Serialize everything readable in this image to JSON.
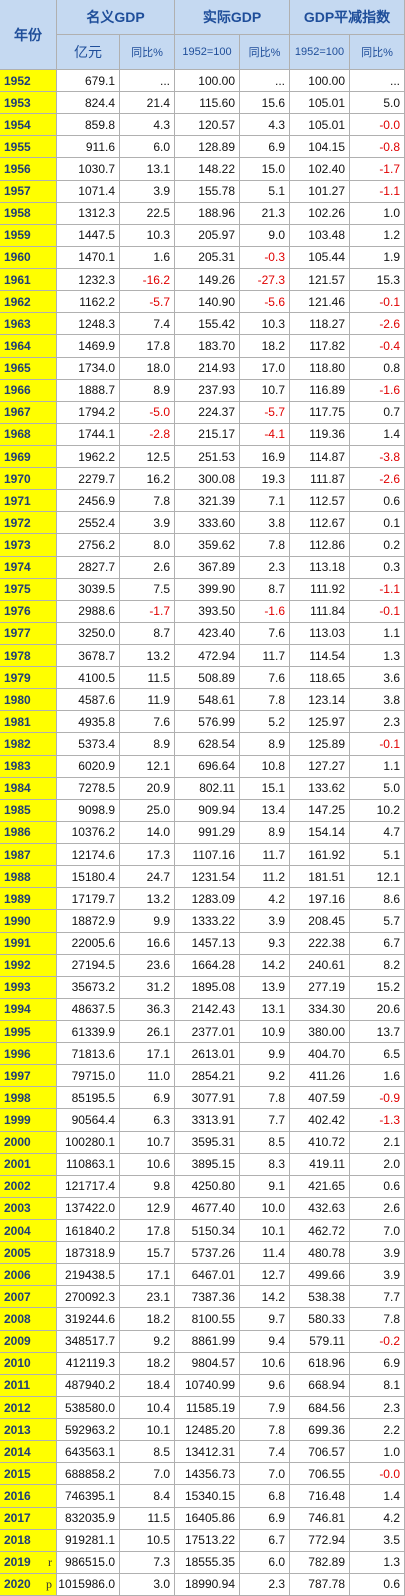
{
  "header": {
    "year": "年份",
    "groups": [
      "名义GDP",
      "实际GDP",
      "GDP平减指数"
    ],
    "subheaders": [
      "亿元",
      "同比%",
      "1952=100",
      "同比%",
      "1952=100",
      "同比%"
    ]
  },
  "rows": [
    {
      "year": "1952",
      "cells": [
        "679.1",
        "...",
        "100.00",
        "...",
        "100.00",
        "..."
      ]
    },
    {
      "year": "1953",
      "cells": [
        "824.4",
        "21.4",
        "115.60",
        "15.6",
        "105.01",
        "5.0"
      ]
    },
    {
      "year": "1954",
      "cells": [
        "859.8",
        "4.3",
        "120.57",
        "4.3",
        "105.01",
        "-0.0"
      ]
    },
    {
      "year": "1955",
      "cells": [
        "911.6",
        "6.0",
        "128.89",
        "6.9",
        "104.15",
        "-0.8"
      ]
    },
    {
      "year": "1956",
      "cells": [
        "1030.7",
        "13.1",
        "148.22",
        "15.0",
        "102.40",
        "-1.7"
      ]
    },
    {
      "year": "1957",
      "cells": [
        "1071.4",
        "3.9",
        "155.78",
        "5.1",
        "101.27",
        "-1.1"
      ]
    },
    {
      "year": "1958",
      "cells": [
        "1312.3",
        "22.5",
        "188.96",
        "21.3",
        "102.26",
        "1.0"
      ]
    },
    {
      "year": "1959",
      "cells": [
        "1447.5",
        "10.3",
        "205.97",
        "9.0",
        "103.48",
        "1.2"
      ]
    },
    {
      "year": "1960",
      "cells": [
        "1470.1",
        "1.6",
        "205.31",
        "-0.3",
        "105.44",
        "1.9"
      ]
    },
    {
      "year": "1961",
      "cells": [
        "1232.3",
        "-16.2",
        "149.26",
        "-27.3",
        "121.57",
        "15.3"
      ]
    },
    {
      "year": "1962",
      "cells": [
        "1162.2",
        "-5.7",
        "140.90",
        "-5.6",
        "121.46",
        "-0.1"
      ]
    },
    {
      "year": "1963",
      "cells": [
        "1248.3",
        "7.4",
        "155.42",
        "10.3",
        "118.27",
        "-2.6"
      ]
    },
    {
      "year": "1964",
      "cells": [
        "1469.9",
        "17.8",
        "183.70",
        "18.2",
        "117.82",
        "-0.4"
      ]
    },
    {
      "year": "1965",
      "cells": [
        "1734.0",
        "18.0",
        "214.93",
        "17.0",
        "118.80",
        "0.8"
      ]
    },
    {
      "year": "1966",
      "cells": [
        "1888.7",
        "8.9",
        "237.93",
        "10.7",
        "116.89",
        "-1.6"
      ]
    },
    {
      "year": "1967",
      "cells": [
        "1794.2",
        "-5.0",
        "224.37",
        "-5.7",
        "117.75",
        "0.7"
      ]
    },
    {
      "year": "1968",
      "cells": [
        "1744.1",
        "-2.8",
        "215.17",
        "-4.1",
        "119.36",
        "1.4"
      ]
    },
    {
      "year": "1969",
      "cells": [
        "1962.2",
        "12.5",
        "251.53",
        "16.9",
        "114.87",
        "-3.8"
      ]
    },
    {
      "year": "1970",
      "cells": [
        "2279.7",
        "16.2",
        "300.08",
        "19.3",
        "111.87",
        "-2.6"
      ]
    },
    {
      "year": "1971",
      "cells": [
        "2456.9",
        "7.8",
        "321.39",
        "7.1",
        "112.57",
        "0.6"
      ]
    },
    {
      "year": "1972",
      "cells": [
        "2552.4",
        "3.9",
        "333.60",
        "3.8",
        "112.67",
        "0.1"
      ]
    },
    {
      "year": "1973",
      "cells": [
        "2756.2",
        "8.0",
        "359.62",
        "7.8",
        "112.86",
        "0.2"
      ]
    },
    {
      "year": "1974",
      "cells": [
        "2827.7",
        "2.6",
        "367.89",
        "2.3",
        "113.18",
        "0.3"
      ]
    },
    {
      "year": "1975",
      "cells": [
        "3039.5",
        "7.5",
        "399.90",
        "8.7",
        "111.92",
        "-1.1"
      ]
    },
    {
      "year": "1976",
      "cells": [
        "2988.6",
        "-1.7",
        "393.50",
        "-1.6",
        "111.84",
        "-0.1"
      ]
    },
    {
      "year": "1977",
      "cells": [
        "3250.0",
        "8.7",
        "423.40",
        "7.6",
        "113.03",
        "1.1"
      ]
    },
    {
      "year": "1978",
      "cells": [
        "3678.7",
        "13.2",
        "472.94",
        "11.7",
        "114.54",
        "1.3"
      ]
    },
    {
      "year": "1979",
      "cells": [
        "4100.5",
        "11.5",
        "508.89",
        "7.6",
        "118.65",
        "3.6"
      ]
    },
    {
      "year": "1980",
      "cells": [
        "4587.6",
        "11.9",
        "548.61",
        "7.8",
        "123.14",
        "3.8"
      ]
    },
    {
      "year": "1981",
      "cells": [
        "4935.8",
        "7.6",
        "576.99",
        "5.2",
        "125.97",
        "2.3"
      ]
    },
    {
      "year": "1982",
      "cells": [
        "5373.4",
        "8.9",
        "628.54",
        "8.9",
        "125.89",
        "-0.1"
      ]
    },
    {
      "year": "1983",
      "cells": [
        "6020.9",
        "12.1",
        "696.64",
        "10.8",
        "127.27",
        "1.1"
      ]
    },
    {
      "year": "1984",
      "cells": [
        "7278.5",
        "20.9",
        "802.11",
        "15.1",
        "133.62",
        "5.0"
      ]
    },
    {
      "year": "1985",
      "cells": [
        "9098.9",
        "25.0",
        "909.94",
        "13.4",
        "147.25",
        "10.2"
      ]
    },
    {
      "year": "1986",
      "cells": [
        "10376.2",
        "14.0",
        "991.29",
        "8.9",
        "154.14",
        "4.7"
      ]
    },
    {
      "year": "1987",
      "cells": [
        "12174.6",
        "17.3",
        "1107.16",
        "11.7",
        "161.92",
        "5.1"
      ]
    },
    {
      "year": "1988",
      "cells": [
        "15180.4",
        "24.7",
        "1231.54",
        "11.2",
        "181.51",
        "12.1"
      ]
    },
    {
      "year": "1989",
      "cells": [
        "17179.7",
        "13.2",
        "1283.09",
        "4.2",
        "197.16",
        "8.6"
      ]
    },
    {
      "year": "1990",
      "cells": [
        "18872.9",
        "9.9",
        "1333.22",
        "3.9",
        "208.45",
        "5.7"
      ]
    },
    {
      "year": "1991",
      "cells": [
        "22005.6",
        "16.6",
        "1457.13",
        "9.3",
        "222.38",
        "6.7"
      ]
    },
    {
      "year": "1992",
      "cells": [
        "27194.5",
        "23.6",
        "1664.28",
        "14.2",
        "240.61",
        "8.2"
      ]
    },
    {
      "year": "1993",
      "cells": [
        "35673.2",
        "31.2",
        "1895.08",
        "13.9",
        "277.19",
        "15.2"
      ]
    },
    {
      "year": "1994",
      "cells": [
        "48637.5",
        "36.3",
        "2142.43",
        "13.1",
        "334.30",
        "20.6"
      ]
    },
    {
      "year": "1995",
      "cells": [
        "61339.9",
        "26.1",
        "2377.01",
        "10.9",
        "380.00",
        "13.7"
      ]
    },
    {
      "year": "1996",
      "cells": [
        "71813.6",
        "17.1",
        "2613.01",
        "9.9",
        "404.70",
        "6.5"
      ]
    },
    {
      "year": "1997",
      "cells": [
        "79715.0",
        "11.0",
        "2854.21",
        "9.2",
        "411.26",
        "1.6"
      ]
    },
    {
      "year": "1998",
      "cells": [
        "85195.5",
        "6.9",
        "3077.91",
        "7.8",
        "407.59",
        "-0.9"
      ]
    },
    {
      "year": "1999",
      "cells": [
        "90564.4",
        "6.3",
        "3313.91",
        "7.7",
        "402.42",
        "-1.3"
      ]
    },
    {
      "year": "2000",
      "cells": [
        "100280.1",
        "10.7",
        "3595.31",
        "8.5",
        "410.72",
        "2.1"
      ]
    },
    {
      "year": "2001",
      "cells": [
        "110863.1",
        "10.6",
        "3895.15",
        "8.3",
        "419.11",
        "2.0"
      ]
    },
    {
      "year": "2002",
      "cells": [
        "121717.4",
        "9.8",
        "4250.80",
        "9.1",
        "421.65",
        "0.6"
      ]
    },
    {
      "year": "2003",
      "cells": [
        "137422.0",
        "12.9",
        "4677.40",
        "10.0",
        "432.63",
        "2.6"
      ]
    },
    {
      "year": "2004",
      "cells": [
        "161840.2",
        "17.8",
        "5150.34",
        "10.1",
        "462.72",
        "7.0"
      ]
    },
    {
      "year": "2005",
      "cells": [
        "187318.9",
        "15.7",
        "5737.26",
        "11.4",
        "480.78",
        "3.9"
      ]
    },
    {
      "year": "2006",
      "cells": [
        "219438.5",
        "17.1",
        "6467.01",
        "12.7",
        "499.66",
        "3.9"
      ]
    },
    {
      "year": "2007",
      "cells": [
        "270092.3",
        "23.1",
        "7387.36",
        "14.2",
        "538.38",
        "7.7"
      ]
    },
    {
      "year": "2008",
      "cells": [
        "319244.6",
        "18.2",
        "8100.55",
        "9.7",
        "580.33",
        "7.8"
      ]
    },
    {
      "year": "2009",
      "cells": [
        "348517.7",
        "9.2",
        "8861.99",
        "9.4",
        "579.11",
        "-0.2"
      ]
    },
    {
      "year": "2010",
      "cells": [
        "412119.3",
        "18.2",
        "9804.57",
        "10.6",
        "618.96",
        "6.9"
      ]
    },
    {
      "year": "2011",
      "cells": [
        "487940.2",
        "18.4",
        "10740.99",
        "9.6",
        "668.94",
        "8.1"
      ]
    },
    {
      "year": "2012",
      "cells": [
        "538580.0",
        "10.4",
        "11585.19",
        "7.9",
        "684.56",
        "2.3"
      ]
    },
    {
      "year": "2013",
      "cells": [
        "592963.2",
        "10.1",
        "12485.20",
        "7.8",
        "699.36",
        "2.2"
      ]
    },
    {
      "year": "2014",
      "cells": [
        "643563.1",
        "8.5",
        "13412.31",
        "7.4",
        "706.57",
        "1.0"
      ]
    },
    {
      "year": "2015",
      "cells": [
        "688858.2",
        "7.0",
        "14356.73",
        "7.0",
        "706.55",
        "-0.0"
      ]
    },
    {
      "year": "2016",
      "cells": [
        "746395.1",
        "8.4",
        "15340.15",
        "6.8",
        "716.48",
        "1.4"
      ]
    },
    {
      "year": "2017",
      "cells": [
        "832035.9",
        "11.5",
        "16405.86",
        "6.9",
        "746.81",
        "4.2"
      ]
    },
    {
      "year": "2018",
      "cells": [
        "919281.1",
        "10.5",
        "17513.22",
        "6.7",
        "772.94",
        "3.5"
      ]
    },
    {
      "year": "2019",
      "note": "r",
      "cells": [
        "986515.0",
        "7.3",
        "18555.35",
        "6.0",
        "782.89",
        "1.3"
      ]
    },
    {
      "year": "2020",
      "note": "p",
      "cells": [
        "1015986.0",
        "3.0",
        "18990.94",
        "2.3",
        "787.78",
        "0.6"
      ]
    }
  ]
}
